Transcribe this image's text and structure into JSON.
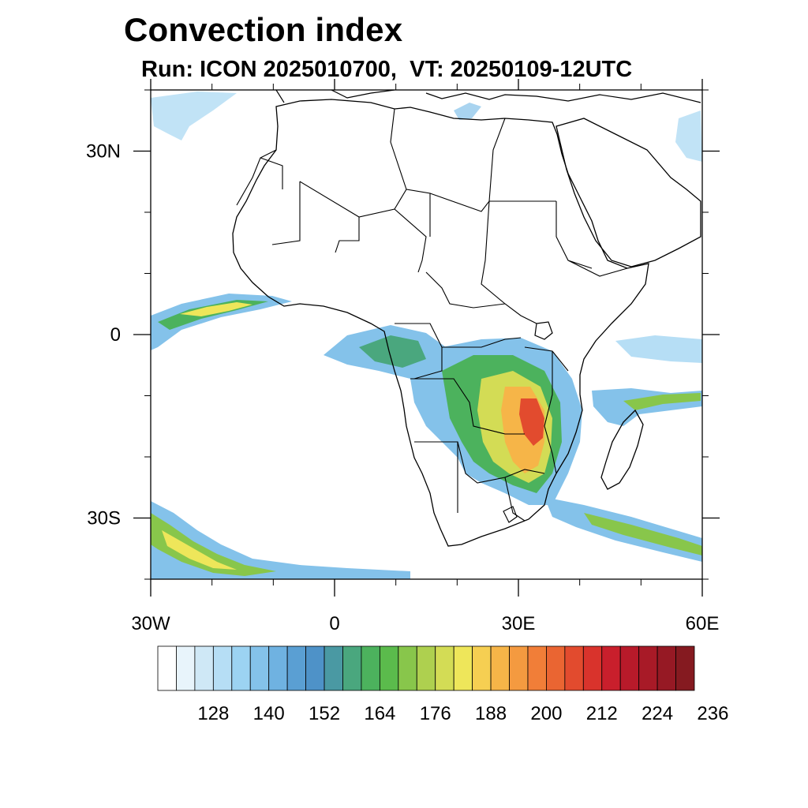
{
  "title": "Convection index",
  "subtitle": "Run: ICON 2025010700,  VT: 20250109-12UTC",
  "map": {
    "projection": "cylindrical-equidistant",
    "extent": {
      "lon_min": -30,
      "lon_max": 60,
      "lat_min": -40,
      "lat_max": 40
    },
    "lon_ticks": [
      {
        "value": -30,
        "label": "30W"
      },
      {
        "value": 0,
        "label": "0"
      },
      {
        "value": 30,
        "label": "30E"
      },
      {
        "value": 60,
        "label": "60E"
      }
    ],
    "lat_ticks": [
      {
        "value": 30,
        "label": "30N"
      },
      {
        "value": 0,
        "label": "0"
      },
      {
        "value": -30,
        "label": "30S"
      }
    ],
    "minor_tick_step_deg": 10,
    "features": [
      "coastlines",
      "country-borders"
    ]
  },
  "colorbar": {
    "colors": [
      "#ffffff",
      "#e8f4fb",
      "#cfe8f6",
      "#b6def5",
      "#9cd3f2",
      "#84c2ea",
      "#6fb2e1",
      "#5a9fd3",
      "#4e92c8",
      "#4a99a3",
      "#4aa77e",
      "#4cb25d",
      "#5bbb4c",
      "#88c64b",
      "#aed04f",
      "#d3dc55",
      "#eee65a",
      "#f6cf52",
      "#f6b548",
      "#f49a40",
      "#f17e38",
      "#ea6532",
      "#e24b2e",
      "#d9332c",
      "#c91f2c",
      "#b81a2a",
      "#a81a27",
      "#961924",
      "#851a20"
    ],
    "labels": [
      "128",
      "140",
      "152",
      "164",
      "176",
      "188",
      "200",
      "212",
      "224",
      "236"
    ]
  }
}
